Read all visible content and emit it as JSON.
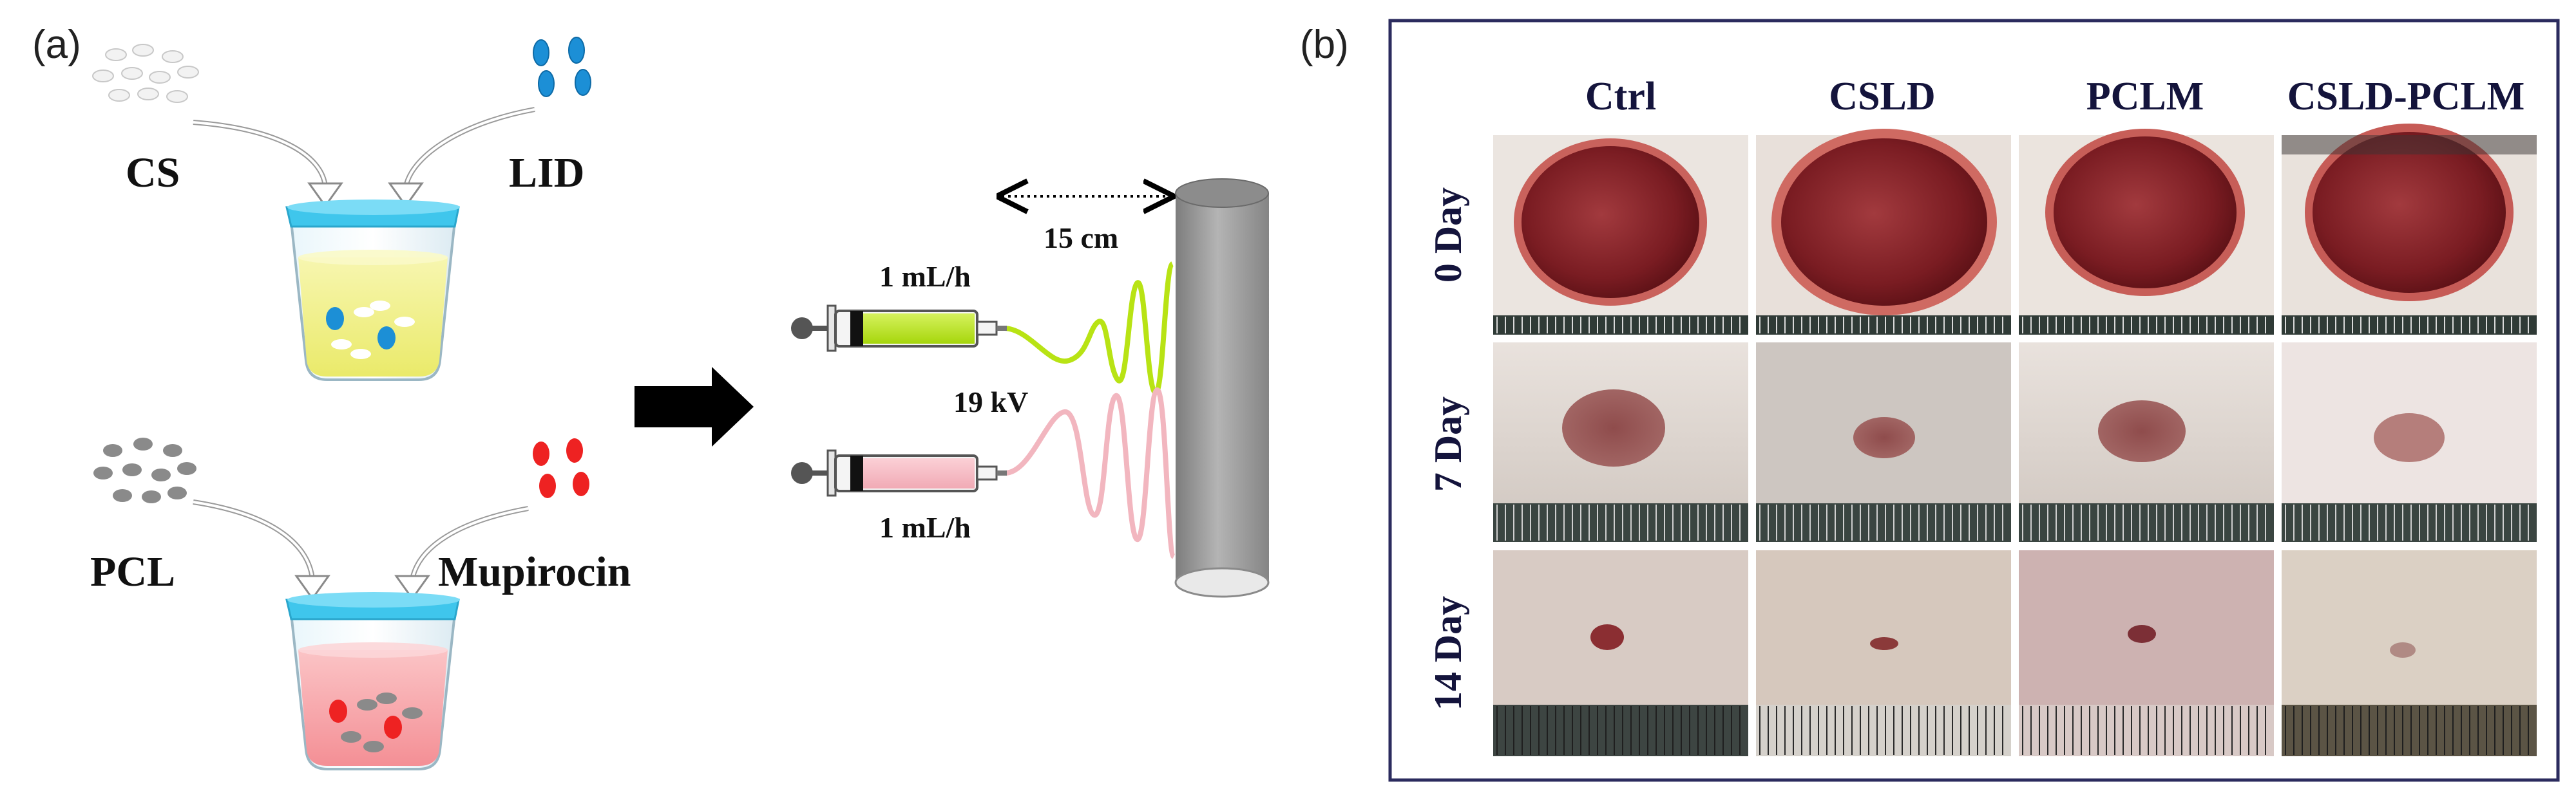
{
  "panel_a": {
    "label": "(a)",
    "ingredients": {
      "cs": "CS",
      "lid": "LID",
      "pcl": "PCL",
      "mupirocin": "Mupirocin"
    },
    "electrospinning": {
      "distance": "15 cm",
      "flow_rate_top": "1 mL/h",
      "voltage": "19 kV",
      "flow_rate_bottom": "1 mL/h"
    },
    "colors": {
      "solution_yellow": "#f2f08a",
      "solution_pink": "#f7a7ab",
      "beaker_cyan": "#3fc6ec",
      "lid_particle": "#1c8fd6",
      "mupirocin_particle": "#ee2222",
      "pcl_particle": "#8a8a8a",
      "fiber_green": "#b8e314",
      "fiber_pink": "#f2b6bf",
      "collector_gray": "#9c9c9c"
    }
  },
  "panel_b": {
    "label": "(b)",
    "columns": [
      "Ctrl",
      "CSLD",
      "PCLM",
      "CSLD-PCLM"
    ],
    "rows": [
      "0 Day",
      "7 Day",
      "14 Day"
    ]
  }
}
